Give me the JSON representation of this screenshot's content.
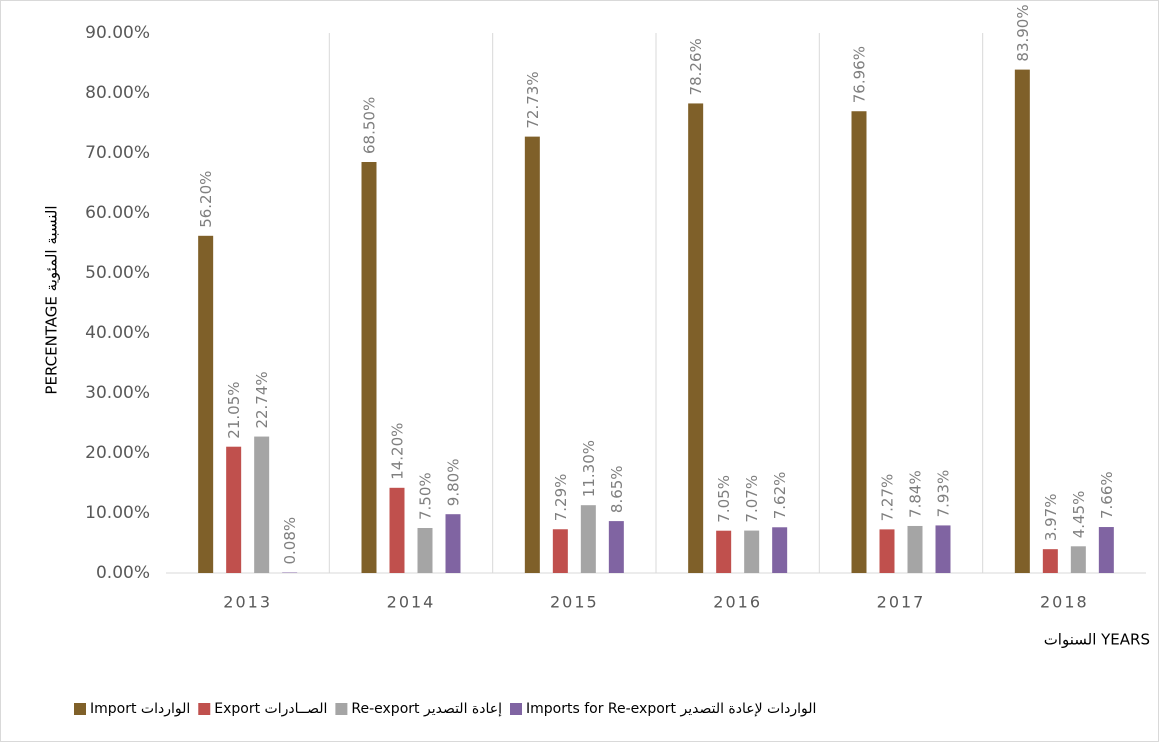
{
  "chart_data": {
    "type": "bar",
    "y_axis_label": "PERCENTAGE النسبة المئوية",
    "x_axis_label": "YEARS السنوات",
    "categories": [
      "2013",
      "2014",
      "2015",
      "2016",
      "2017",
      "2018"
    ],
    "series": [
      {
        "name": "Import الواردات",
        "color": "#7f6029",
        "values": [
          56.2,
          68.5,
          72.73,
          78.26,
          76.96,
          83.9
        ],
        "value_labels": [
          "56.20%",
          "68.50%",
          "72.73%",
          "78.26%",
          "76.96%",
          "83.90%"
        ]
      },
      {
        "name": "Export الصــادرات",
        "color": "#c0504d",
        "values": [
          21.05,
          14.2,
          7.29,
          7.05,
          7.27,
          3.97
        ],
        "value_labels": [
          "21.05%",
          "14.20%",
          "7.29%",
          "7.05%",
          "7.27%",
          "3.97%"
        ]
      },
      {
        "name": "Re-export إعادة التصدير",
        "color": "#a5a5a5",
        "values": [
          22.74,
          7.5,
          11.3,
          7.07,
          7.84,
          4.45
        ],
        "value_labels": [
          "22.74%",
          "7.50%",
          "11.30%",
          "7.07%",
          "7.84%",
          "4.45%"
        ]
      },
      {
        "name": "Imports for Re-export الواردات لإعادة التصدير",
        "color": "#8064a2",
        "values": [
          0.08,
          9.8,
          8.65,
          7.62,
          7.93,
          7.66
        ],
        "value_labels": [
          "0.08%",
          "9.80%",
          "8.65%",
          "7.62%",
          "7.93%",
          "7.66%"
        ]
      }
    ],
    "ylim": [
      0,
      90
    ],
    "yticks": [
      {
        "value": 0,
        "label": "0.00%"
      },
      {
        "value": 10,
        "label": "10.00%"
      },
      {
        "value": 20,
        "label": "20.00%"
      },
      {
        "value": 30,
        "label": "30.00%"
      },
      {
        "value": 40,
        "label": "40.00%"
      },
      {
        "value": 50,
        "label": "50.00%"
      },
      {
        "value": 60,
        "label": "60.00%"
      },
      {
        "value": 70,
        "label": "70.00%"
      },
      {
        "value": 80,
        "label": "80.00%"
      },
      {
        "value": 90,
        "label": "90.00%"
      }
    ],
    "legend": "bottom"
  }
}
